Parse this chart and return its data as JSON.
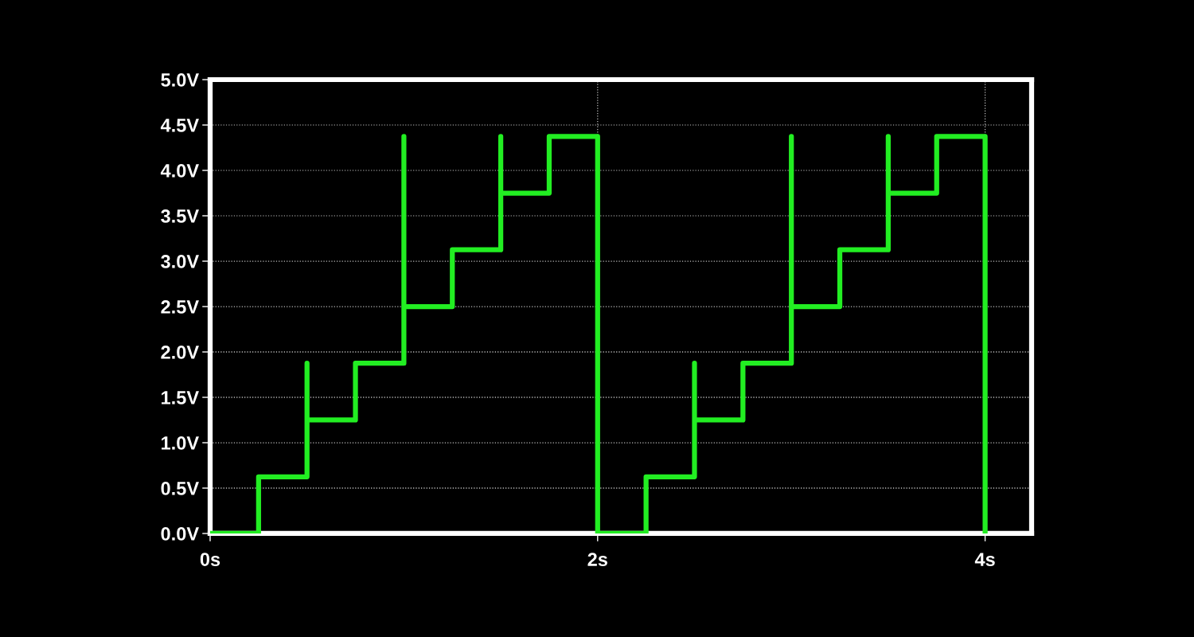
{
  "chart_data": {
    "type": "line",
    "x": [
      0,
      0.25,
      0.25,
      0.5,
      0.5,
      0.5,
      0.75,
      0.75,
      1.0,
      1.0,
      1.0,
      1.25,
      1.25,
      1.5,
      1.5,
      1.5,
      1.75,
      1.75,
      2.0,
      2.0,
      2.25,
      2.25,
      2.5,
      2.5,
      2.5,
      2.75,
      2.75,
      3.0,
      3.0,
      3.0,
      3.25,
      3.25,
      3.5,
      3.5,
      3.5,
      3.75,
      3.75,
      4.0,
      4.0
    ],
    "series": [
      {
        "color": "#22ee22",
        "values": [
          0,
          0,
          0.625,
          0.625,
          1.875,
          1.25,
          1.25,
          1.875,
          1.875,
          4.375,
          2.5,
          2.5,
          3.125,
          3.125,
          4.375,
          3.75,
          3.75,
          4.375,
          4.375,
          0,
          0,
          0.625,
          0.625,
          1.875,
          1.25,
          1.25,
          1.875,
          1.875,
          4.375,
          2.5,
          2.5,
          3.125,
          3.125,
          4.375,
          3.75,
          3.75,
          4.375,
          4.375,
          0
        ]
      }
    ],
    "xlim": [
      0,
      4.24
    ],
    "ylim": [
      0,
      5.0
    ],
    "xticks": [
      {
        "value": 0,
        "label": "0s"
      },
      {
        "value": 2,
        "label": "2s"
      },
      {
        "value": 4,
        "label": "4s"
      }
    ],
    "yticks": [
      {
        "value": 0,
        "label": "0.0V"
      },
      {
        "value": 0.5,
        "label": "0.5V"
      },
      {
        "value": 1.0,
        "label": "1.0V"
      },
      {
        "value": 1.5,
        "label": "1.5V"
      },
      {
        "value": 2.0,
        "label": "2.0V"
      },
      {
        "value": 2.5,
        "label": "2.5V"
      },
      {
        "value": 3.0,
        "label": "3.0V"
      },
      {
        "value": 3.5,
        "label": "3.5V"
      },
      {
        "value": 4.0,
        "label": "4.0V"
      },
      {
        "value": 4.5,
        "label": "4.5V"
      },
      {
        "value": 5.0,
        "label": "5.0V"
      }
    ],
    "grid": true,
    "line_style": "solid",
    "marker": "none"
  }
}
